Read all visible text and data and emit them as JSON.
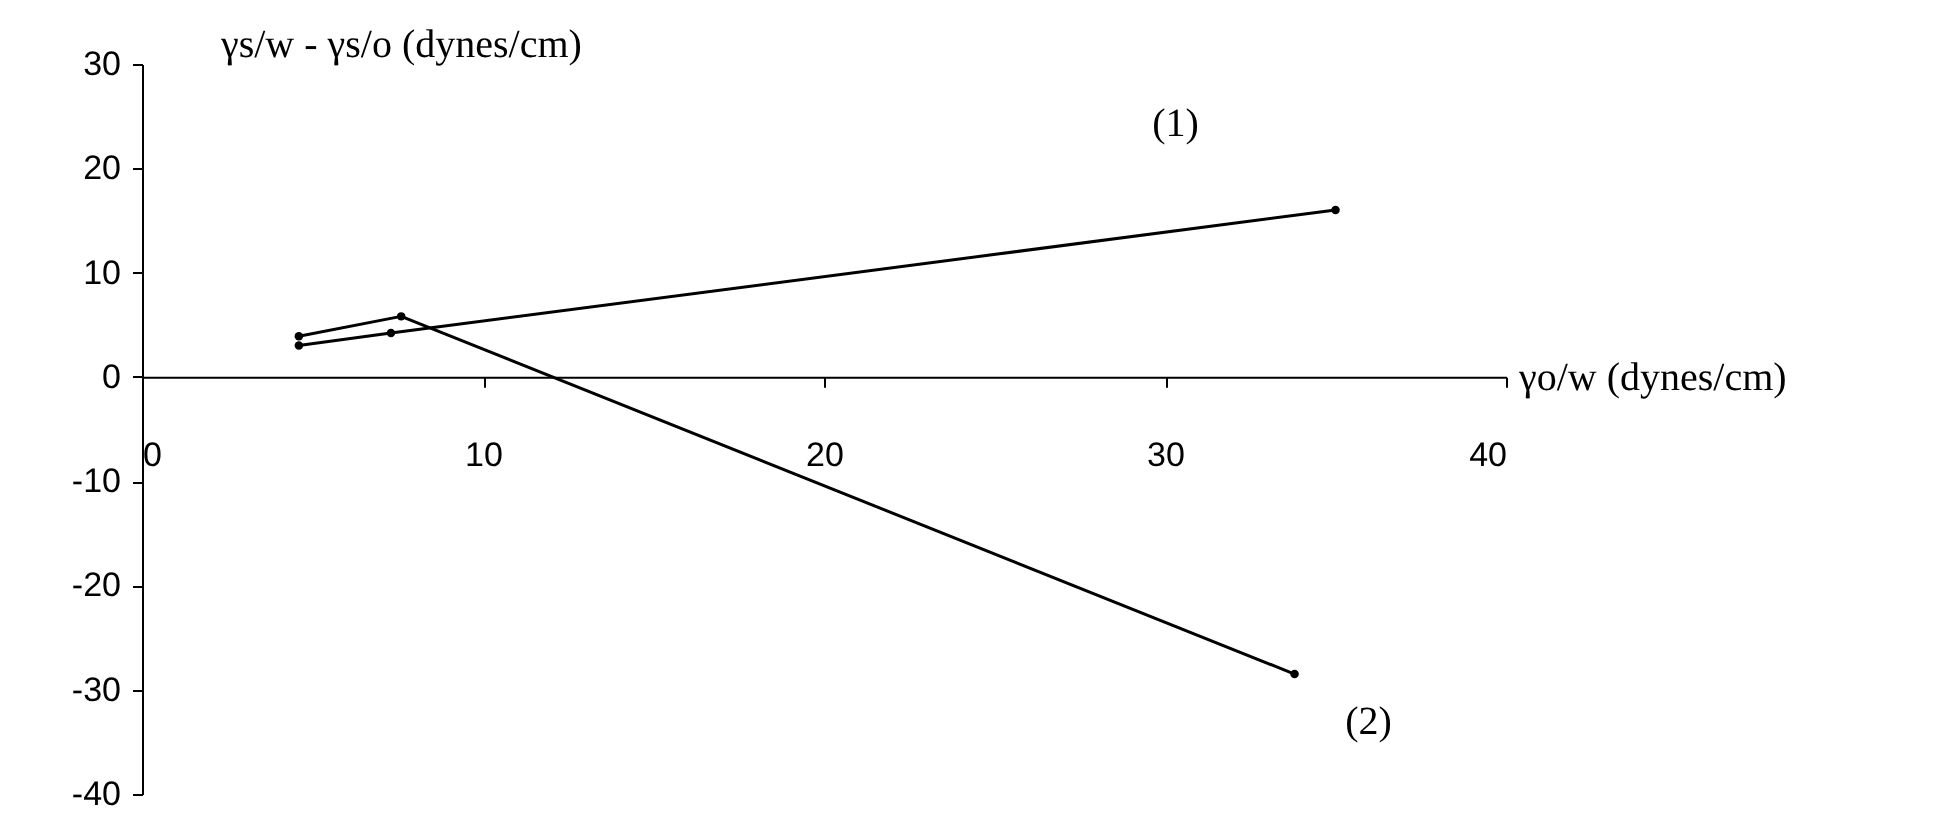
{
  "chart_data": {
    "type": "line",
    "xlabel": "γo/w (dynes/cm)",
    "ylabel": "γs/w - γs/o (dynes/cm)",
    "series": [
      {
        "name": "(1)",
        "color": "#000000",
        "x": [
          4.6,
          7.3,
          35
        ],
        "values": [
          3.0,
          4.2,
          16
        ]
      },
      {
        "name": "(2)",
        "color": "#000000",
        "x": [
          4.6,
          7.6,
          33.8
        ],
        "values": [
          3.9,
          5.8,
          -28.5
        ]
      }
    ],
    "xlim": [
      0,
      40
    ],
    "ylim": [
      -40,
      30
    ],
    "xticks": [
      0,
      10,
      20,
      30,
      40
    ],
    "yticks": [
      -40,
      -30,
      -20,
      -10,
      0,
      10,
      20,
      30
    ],
    "grid": false,
    "legend": false,
    "marker": "circle",
    "line_style": "solid"
  }
}
